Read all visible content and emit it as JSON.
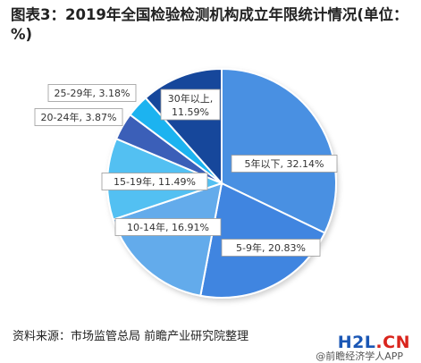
{
  "header": {
    "title": "图表3：2019年全国检验检测机构成立年限统计情况(单位：%)"
  },
  "chart_data": {
    "type": "pie",
    "title": "图表3：2019年全国检验检测机构成立年限统计情况(单位：%)",
    "unit": "%",
    "slices": [
      {
        "label": "5年以下, 32.14%",
        "category": "5年以下",
        "value": 32.14,
        "color": "#4a90e2"
      },
      {
        "label": "5-9年, 20.83%",
        "category": "5-9年",
        "value": 20.83,
        "color": "#3f85e0"
      },
      {
        "label": "10-14年, 16.91%",
        "category": "10-14年",
        "value": 16.91,
        "color": "#64abeb"
      },
      {
        "label": "15-19年, 11.49%",
        "category": "15-19年",
        "value": 11.49,
        "color": "#52c0f2"
      },
      {
        "label": "20-24年, 3.87%",
        "category": "20-24年",
        "value": 3.87,
        "color": "#3a5fb8"
      },
      {
        "label": "25-29年, 3.18%",
        "category": "25-29年",
        "value": 3.18,
        "color": "#1fb3f0"
      },
      {
        "label": "30年以上, 11.59%",
        "category": "30年以上",
        "value": 11.59,
        "color": "#17479b"
      }
    ]
  },
  "footer": {
    "source": "资料来源：市场监管总局 前瞻产业研究院整理",
    "watermark_brand_letters": "H2L",
    "watermark_brand_suffix": ".CN",
    "watermark_app": "@前瞻经济学人APP"
  }
}
